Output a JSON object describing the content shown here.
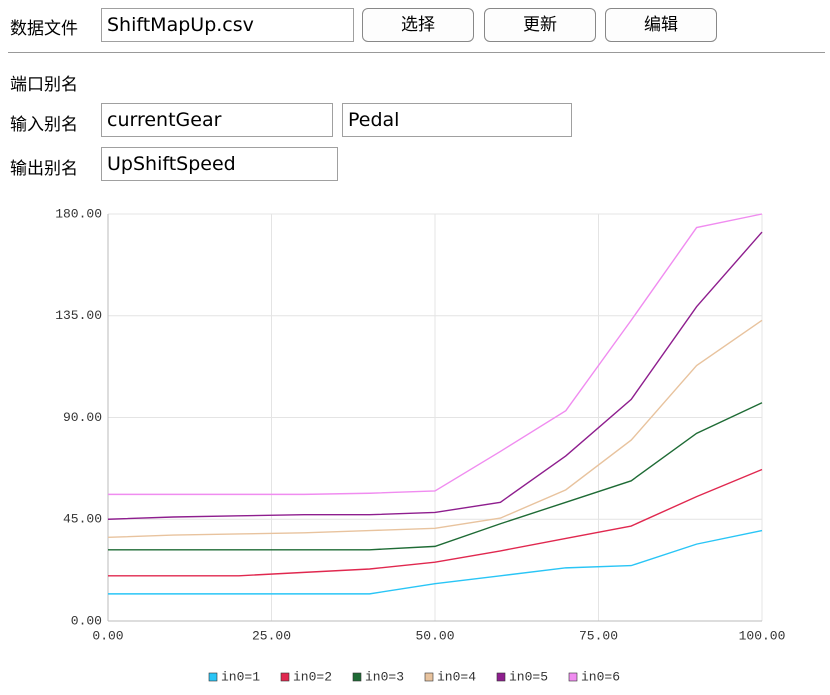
{
  "form": {
    "data_file": {
      "label": "数据文件",
      "value": "ShiftMapUp.csv",
      "buttons": [
        "选择",
        "更新",
        "编辑"
      ]
    },
    "port_alias": {
      "title": "端口别名",
      "input": {
        "label": "输入别名",
        "values": [
          "currentGear",
          "Pedal"
        ]
      },
      "output": {
        "label": "输出别名",
        "values": [
          "UpShiftSpeed"
        ]
      }
    }
  },
  "chart_data": {
    "type": "line",
    "x": [
      0,
      10,
      20,
      30,
      40,
      50,
      60,
      70,
      80,
      90,
      100
    ],
    "xlim": [
      0,
      100
    ],
    "xticks": [
      {
        "value": 0,
        "label": "0.00"
      },
      {
        "value": 25,
        "label": "25.00"
      },
      {
        "value": 50,
        "label": "50.00"
      },
      {
        "value": 75,
        "label": "75.00"
      },
      {
        "value": 100,
        "label": "100.00"
      }
    ],
    "ylim": [
      0,
      180
    ],
    "yticks": [
      {
        "value": 0,
        "label": "0.00"
      },
      {
        "value": 45,
        "label": "45.00"
      },
      {
        "value": 90,
        "label": "90.00"
      },
      {
        "value": 135,
        "label": "135.00"
      },
      {
        "value": 180,
        "label": "180.00"
      }
    ],
    "grid": true,
    "legend": "bottom",
    "series": [
      {
        "name": "in0=1",
        "color": "#29c5f6",
        "values": [
          12,
          12,
          12,
          12,
          12,
          16.5,
          20,
          23.5,
          24.5,
          34,
          40
        ]
      },
      {
        "name": "in0=2",
        "color": "#e0284f",
        "values": [
          20,
          20,
          20,
          21.5,
          23,
          26,
          31,
          36.5,
          42,
          55,
          67
        ]
      },
      {
        "name": "in0=3",
        "color": "#1e6b35",
        "values": [
          31.5,
          31.5,
          31.5,
          31.5,
          31.5,
          33,
          43,
          52.5,
          62,
          83,
          96.5
        ]
      },
      {
        "name": "in0=4",
        "color": "#e8c39e",
        "values": [
          37,
          38,
          38.5,
          39,
          40,
          41,
          45.5,
          58,
          80,
          113,
          133
        ]
      },
      {
        "name": "in0=5",
        "color": "#8e1e8e",
        "values": [
          45,
          46,
          46.5,
          47,
          47,
          48,
          52.5,
          73,
          98,
          139,
          172
        ]
      },
      {
        "name": "in0=6",
        "color": "#f08cf0",
        "values": [
          56,
          56,
          56,
          56,
          56.5,
          57.5,
          75,
          93,
          133,
          174,
          180
        ]
      }
    ]
  }
}
